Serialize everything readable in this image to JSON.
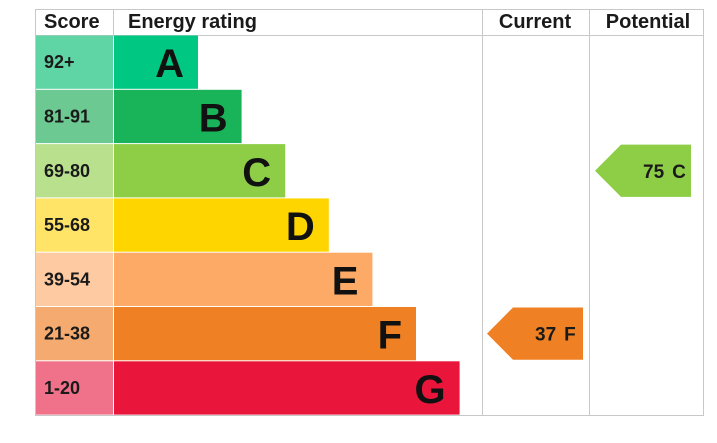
{
  "header": {
    "score": "Score",
    "rating": "Energy rating",
    "current": "Current",
    "potential": "Potential"
  },
  "bands": [
    {
      "score": "92+",
      "letter": "A",
      "color": "#00c781",
      "light": "#5fd4a4"
    },
    {
      "score": "81-91",
      "letter": "B",
      "color": "#19b459",
      "light": "#6cc991"
    },
    {
      "score": "69-80",
      "letter": "C",
      "color": "#8dce46",
      "light": "#b9e08d"
    },
    {
      "score": "55-68",
      "letter": "D",
      "color": "#ffd500",
      "light": "#ffe468"
    },
    {
      "score": "39-54",
      "letter": "E",
      "color": "#fcaa65",
      "light": "#fdcaa2"
    },
    {
      "score": "21-38",
      "letter": "F",
      "color": "#ef8023",
      "light": "#f5ab6f"
    },
    {
      "score": "1-20",
      "letter": "G",
      "color": "#e9153b",
      "light": "#f0718a"
    }
  ],
  "current": {
    "value": 37,
    "letter": "F"
  },
  "potential": {
    "value": 75,
    "letter": "C"
  }
}
